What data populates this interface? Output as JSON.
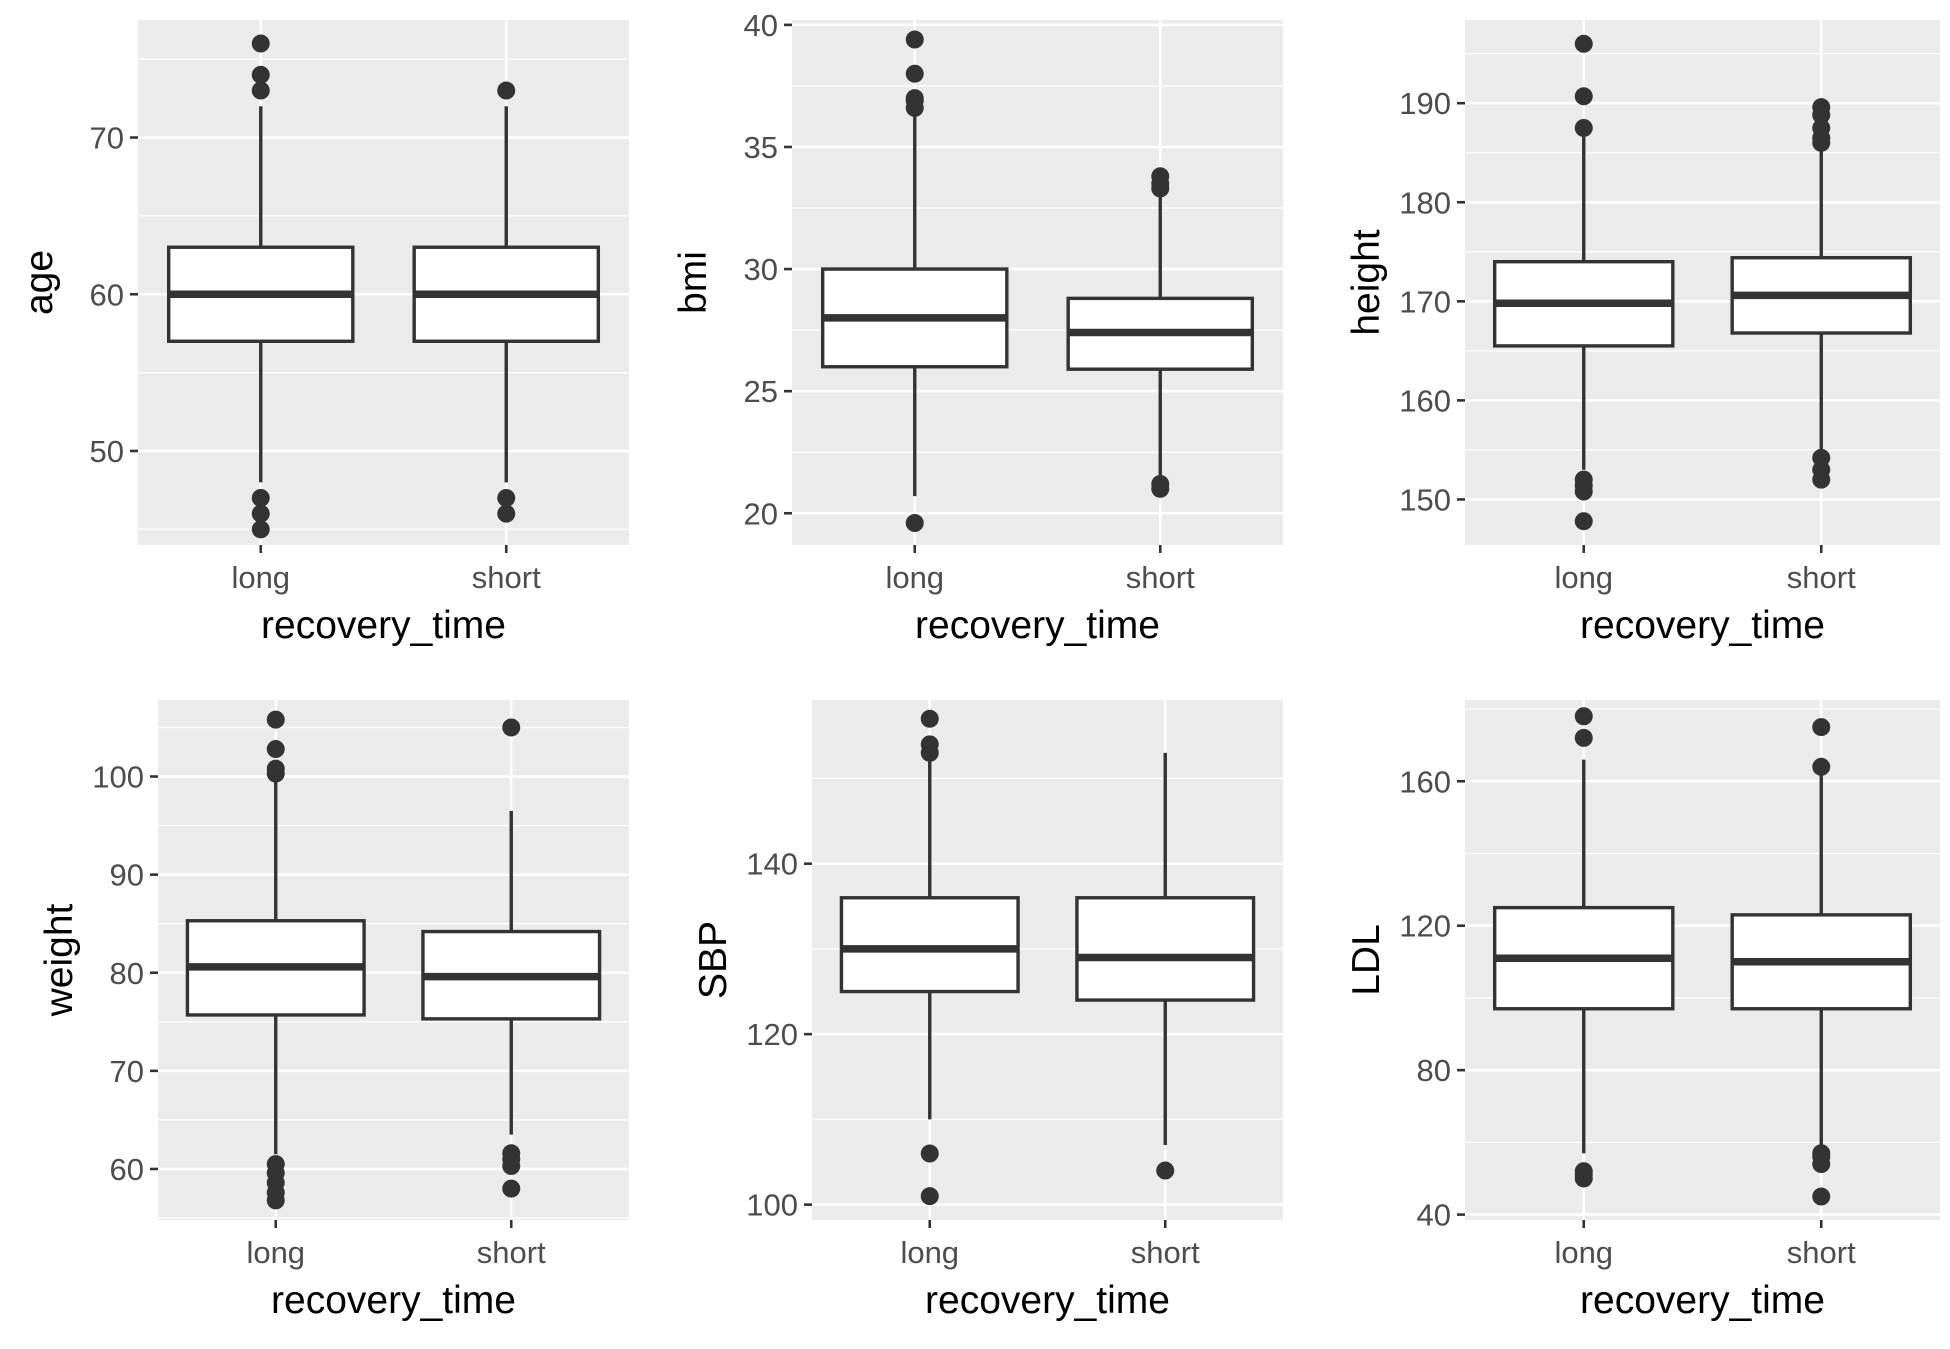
{
  "chart_data": [
    {
      "type": "boxplot",
      "xlabel": "recovery_time",
      "ylabel": "age",
      "categories": [
        "long",
        "short"
      ],
      "ylim": [
        44,
        77.5
      ],
      "yticks": [
        50,
        60,
        70
      ],
      "boxes": [
        {
          "category": "long",
          "whisker_low": 48,
          "q1": 57,
          "median": 60,
          "q3": 63,
          "whisker_high": 72,
          "outliers": [
            45,
            46,
            47,
            73,
            74,
            76
          ]
        },
        {
          "category": "short",
          "whisker_low": 48,
          "q1": 57,
          "median": 60,
          "q3": 63,
          "whisker_high": 72,
          "outliers": [
            46,
            47,
            73
          ]
        }
      ]
    },
    {
      "type": "boxplot",
      "xlabel": "recovery_time",
      "ylabel": "bmi",
      "categories": [
        "long",
        "short"
      ],
      "ylim": [
        18.7,
        40.2
      ],
      "yticks": [
        20,
        25,
        30,
        35,
        40
      ],
      "boxes": [
        {
          "category": "long",
          "whisker_low": 20.7,
          "q1": 26,
          "median": 28,
          "q3": 30,
          "whisker_high": 36.3,
          "outliers": [
            19.6,
            36.6,
            36.9,
            37.0,
            38.0,
            39.4
          ]
        },
        {
          "category": "short",
          "whisker_low": 21.5,
          "q1": 25.9,
          "median": 27.4,
          "q3": 28.8,
          "whisker_high": 33.1,
          "outliers": [
            21.0,
            21.2,
            33.3,
            33.5,
            33.8
          ]
        }
      ]
    },
    {
      "type": "boxplot",
      "xlabel": "recovery_time",
      "ylabel": "height",
      "categories": [
        "long",
        "short"
      ],
      "ylim": [
        145.4,
        198.4
      ],
      "yticks": [
        150,
        160,
        170,
        180,
        190
      ],
      "boxes": [
        {
          "category": "long",
          "whisker_low": 153,
          "q1": 165.5,
          "median": 169.8,
          "q3": 174,
          "whisker_high": 187,
          "outliers": [
            147.8,
            150.8,
            151.4,
            152.0,
            187.5,
            190.7,
            196.0
          ]
        },
        {
          "category": "short",
          "whisker_low": 155,
          "q1": 166.8,
          "median": 170.6,
          "q3": 174.4,
          "whisker_high": 185.6,
          "outliers": [
            152.0,
            153.0,
            154.2,
            186.0,
            186.5,
            187.5,
            188.8,
            189.6
          ]
        }
      ]
    },
    {
      "type": "boxplot",
      "xlabel": "recovery_time",
      "ylabel": "weight",
      "categories": [
        "long",
        "short"
      ],
      "ylim": [
        54.8,
        107.8
      ],
      "yticks": [
        60,
        70,
        80,
        90,
        100
      ],
      "boxes": [
        {
          "category": "long",
          "whisker_low": 61.5,
          "q1": 75.7,
          "median": 80.6,
          "q3": 85.3,
          "whisker_high": 99.8,
          "outliers": [
            56.8,
            57.6,
            58.6,
            59.6,
            60.5,
            100.3,
            100.8,
            102.8,
            105.8
          ]
        },
        {
          "category": "short",
          "whisker_low": 63.5,
          "q1": 75.3,
          "median": 79.6,
          "q3": 84.2,
          "whisker_high": 96.5,
          "outliers": [
            58.0,
            60.3,
            61.0,
            61.6,
            105.0
          ]
        }
      ]
    },
    {
      "type": "boxplot",
      "xlabel": "recovery_time",
      "ylabel": "SBP",
      "categories": [
        "long",
        "short"
      ],
      "ylim": [
        98.2,
        159.2
      ],
      "yticks": [
        100,
        120,
        140
      ],
      "boxes": [
        {
          "category": "long",
          "whisker_low": 110,
          "q1": 125,
          "median": 130,
          "q3": 136,
          "whisker_high": 152,
          "outliers": [
            101,
            106,
            153,
            154,
            157
          ]
        },
        {
          "category": "short",
          "whisker_low": 107,
          "q1": 124,
          "median": 129,
          "q3": 136,
          "whisker_high": 153,
          "outliers": [
            104
          ]
        }
      ]
    },
    {
      "type": "boxplot",
      "xlabel": "recovery_time",
      "ylabel": "LDL",
      "categories": [
        "long",
        "short"
      ],
      "ylim": [
        38.5,
        182.5
      ],
      "yticks": [
        40,
        80,
        120,
        160
      ],
      "boxes": [
        {
          "category": "long",
          "whisker_low": 57,
          "q1": 97,
          "median": 111,
          "q3": 125,
          "whisker_high": 166,
          "outliers": [
            50,
            51,
            52,
            172,
            178
          ]
        },
        {
          "category": "short",
          "whisker_low": 59,
          "q1": 97,
          "median": 110,
          "q3": 123,
          "whisker_high": 163,
          "outliers": [
            45,
            54,
            56,
            57,
            164,
            175
          ]
        }
      ]
    }
  ]
}
